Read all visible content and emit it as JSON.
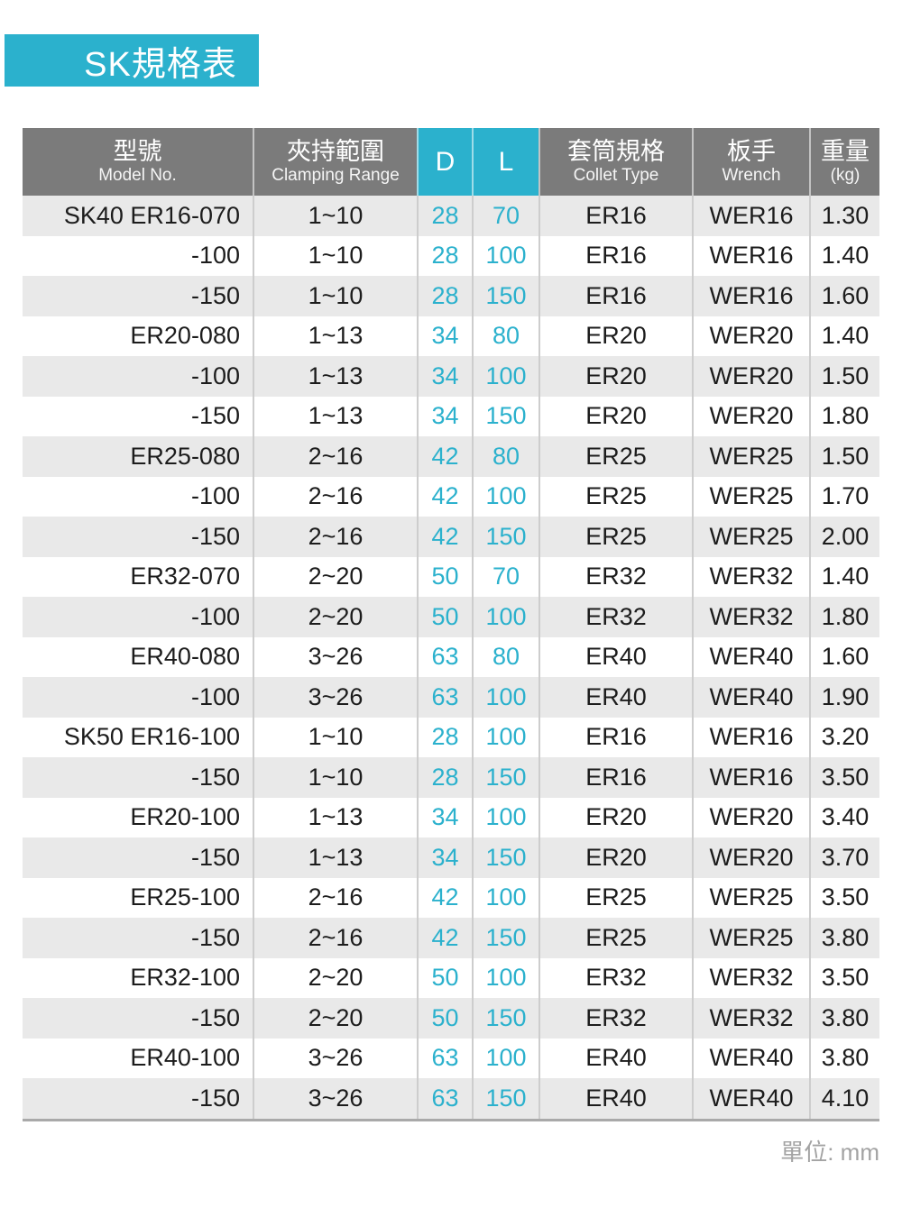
{
  "title": "SK規格表",
  "unit_note": "單位: mm",
  "colors": {
    "accent": "#2bb1cd",
    "header_bg": "#7b7b7b",
    "stripe": "#e9e9e9",
    "data_text": "#1c1c1c",
    "note_text": "#a3a3a3"
  },
  "table": {
    "columns": [
      {
        "key": "model",
        "zh": "型號",
        "en": "Model No.",
        "accent": false
      },
      {
        "key": "range",
        "zh": "夾持範圍",
        "en": "Clamping Range",
        "accent": false
      },
      {
        "key": "d",
        "zh": "D",
        "en": "",
        "accent": true
      },
      {
        "key": "l",
        "zh": "L",
        "en": "",
        "accent": true
      },
      {
        "key": "collet",
        "zh": "套筒規格",
        "en": "Collet Type",
        "accent": false
      },
      {
        "key": "wrench",
        "zh": "板手",
        "en": "Wrench",
        "accent": false
      },
      {
        "key": "weight",
        "zh": "重量",
        "en": "(kg)",
        "accent": false
      }
    ],
    "rows": [
      [
        "SK40 ER16-070",
        "1~10",
        "28",
        "70",
        "ER16",
        "WER16",
        "1.30"
      ],
      [
        "-100",
        "1~10",
        "28",
        "100",
        "ER16",
        "WER16",
        "1.40"
      ],
      [
        "-150",
        "1~10",
        "28",
        "150",
        "ER16",
        "WER16",
        "1.60"
      ],
      [
        "ER20-080",
        "1~13",
        "34",
        "80",
        "ER20",
        "WER20",
        "1.40"
      ],
      [
        "-100",
        "1~13",
        "34",
        "100",
        "ER20",
        "WER20",
        "1.50"
      ],
      [
        "-150",
        "1~13",
        "34",
        "150",
        "ER20",
        "WER20",
        "1.80"
      ],
      [
        "ER25-080",
        "2~16",
        "42",
        "80",
        "ER25",
        "WER25",
        "1.50"
      ],
      [
        "-100",
        "2~16",
        "42",
        "100",
        "ER25",
        "WER25",
        "1.70"
      ],
      [
        "-150",
        "2~16",
        "42",
        "150",
        "ER25",
        "WER25",
        "2.00"
      ],
      [
        "ER32-070",
        "2~20",
        "50",
        "70",
        "ER32",
        "WER32",
        "1.40"
      ],
      [
        "-100",
        "2~20",
        "50",
        "100",
        "ER32",
        "WER32",
        "1.80"
      ],
      [
        "ER40-080",
        "3~26",
        "63",
        "80",
        "ER40",
        "WER40",
        "1.60"
      ],
      [
        "-100",
        "3~26",
        "63",
        "100",
        "ER40",
        "WER40",
        "1.90"
      ],
      [
        "SK50 ER16-100",
        "1~10",
        "28",
        "100",
        "ER16",
        "WER16",
        "3.20"
      ],
      [
        "-150",
        "1~10",
        "28",
        "150",
        "ER16",
        "WER16",
        "3.50"
      ],
      [
        "ER20-100",
        "1~13",
        "34",
        "100",
        "ER20",
        "WER20",
        "3.40"
      ],
      [
        "-150",
        "1~13",
        "34",
        "150",
        "ER20",
        "WER20",
        "3.70"
      ],
      [
        "ER25-100",
        "2~16",
        "42",
        "100",
        "ER25",
        "WER25",
        "3.50"
      ],
      [
        "-150",
        "2~16",
        "42",
        "150",
        "ER25",
        "WER25",
        "3.80"
      ],
      [
        "ER32-100",
        "2~20",
        "50",
        "100",
        "ER32",
        "WER32",
        "3.50"
      ],
      [
        "-150",
        "2~20",
        "50",
        "150",
        "ER32",
        "WER32",
        "3.80"
      ],
      [
        "ER40-100",
        "3~26",
        "63",
        "100",
        "ER40",
        "WER40",
        "3.80"
      ],
      [
        "-150",
        "3~26",
        "63",
        "150",
        "ER40",
        "WER40",
        "4.10"
      ]
    ]
  }
}
